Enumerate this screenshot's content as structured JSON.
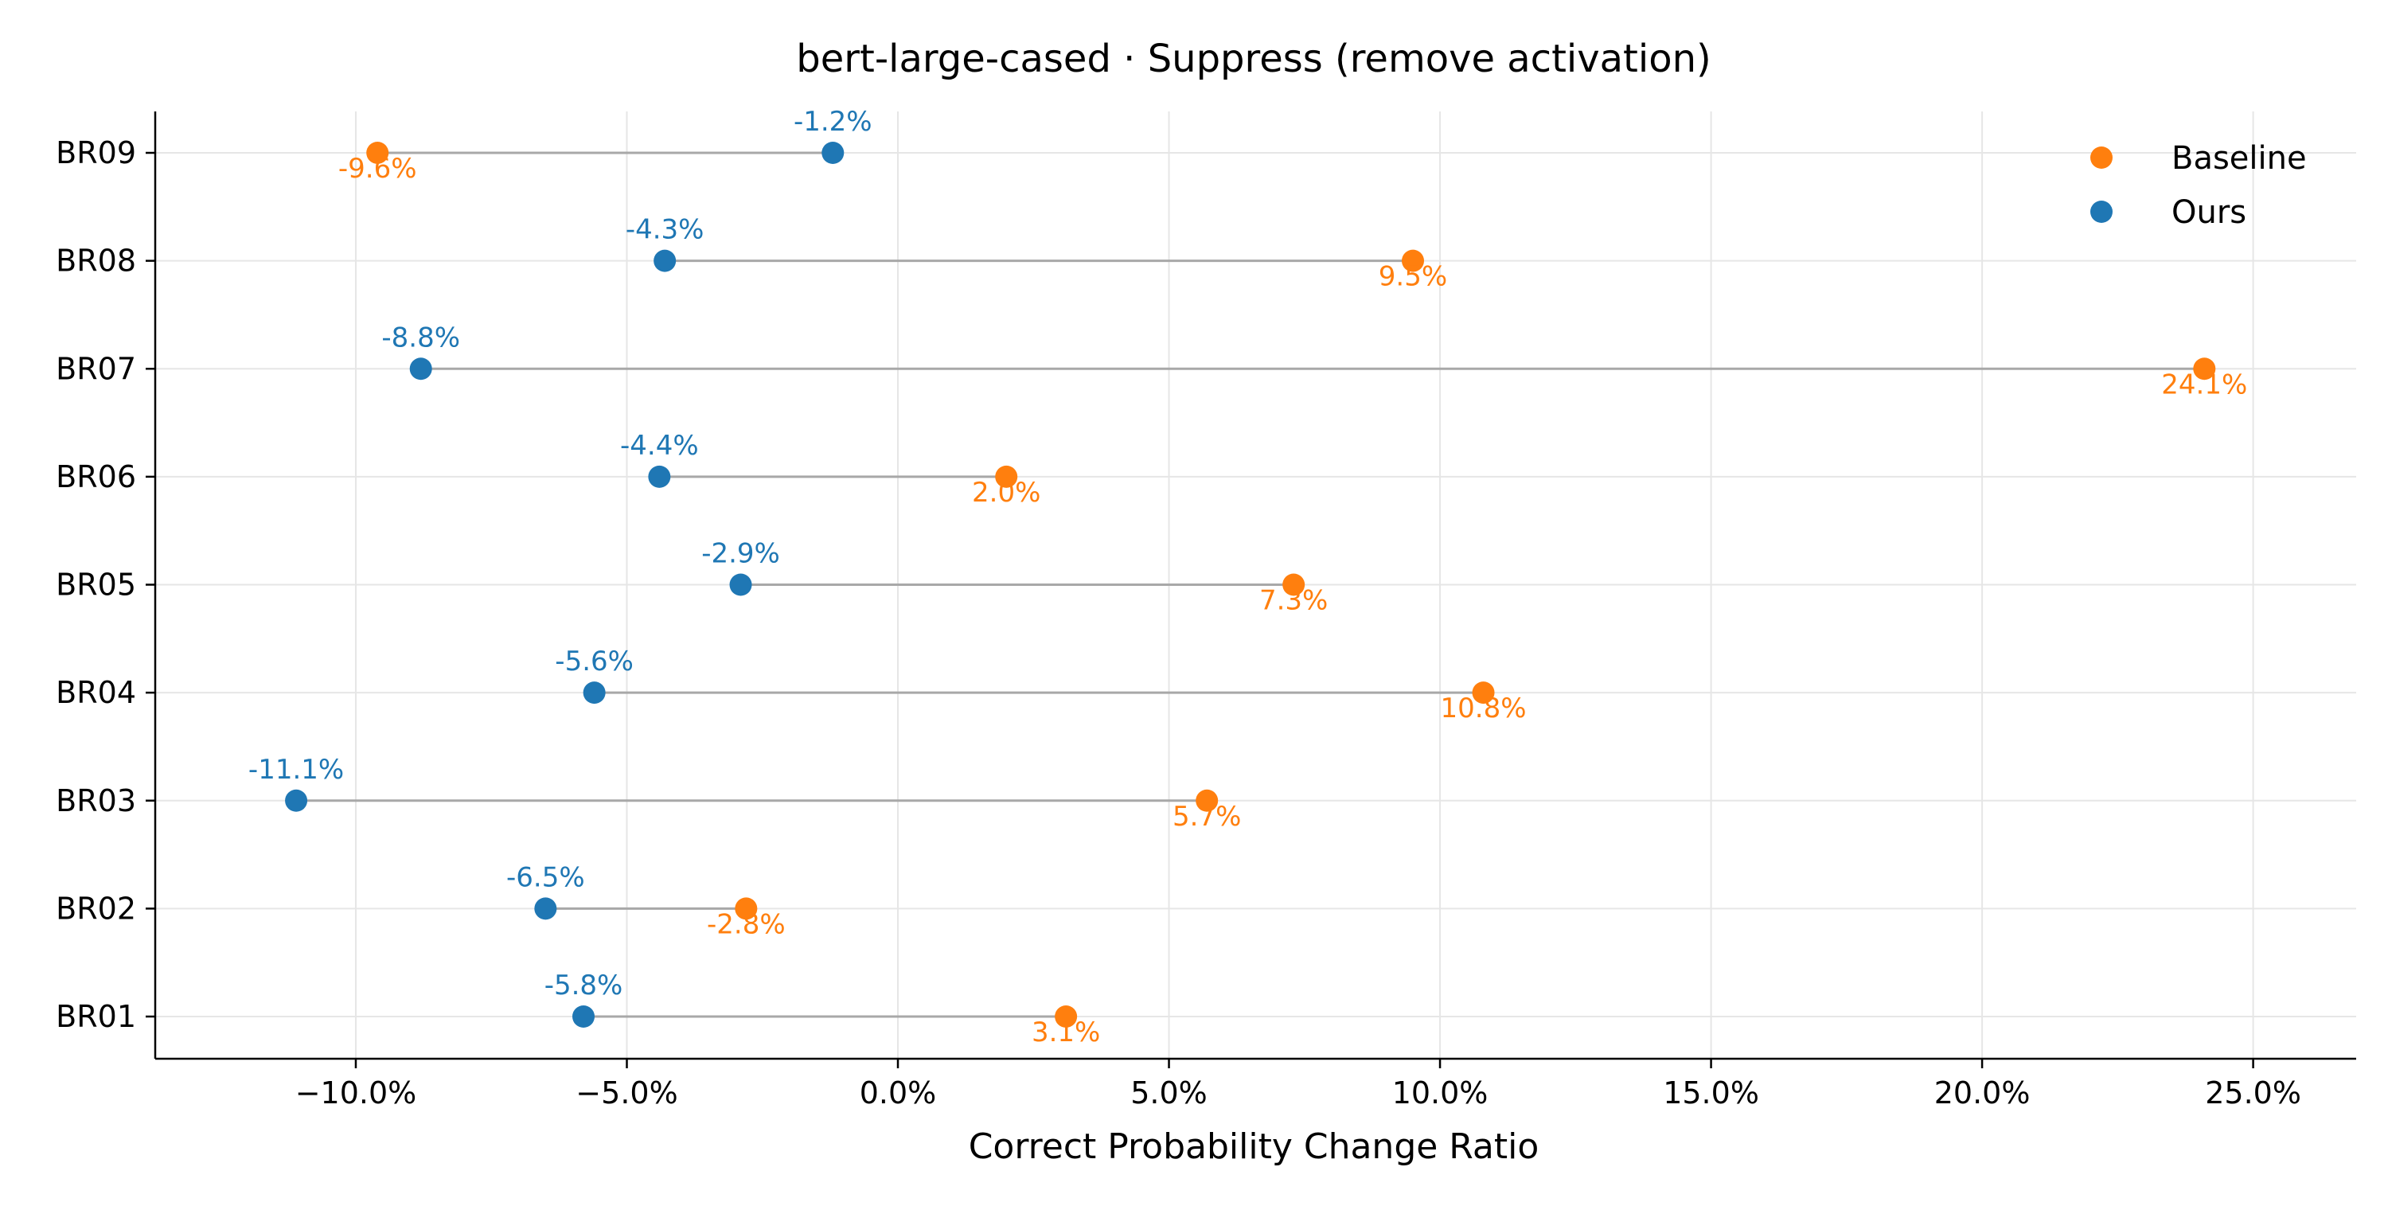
{
  "chart_data": {
    "type": "dumbbell",
    "title": "bert-large-cased · Suppress (remove activation)",
    "xlabel": "Correct Probability Change Ratio",
    "ylabel": "",
    "xlim": [
      -13.7,
      26.9
    ],
    "x_ticks": [
      -10,
      -5,
      0,
      5,
      10,
      15,
      20,
      25
    ],
    "x_tick_labels": [
      "−10.0%",
      "−5.0%",
      "0.0%",
      "5.0%",
      "10.0%",
      "15.0%",
      "20.0%",
      "25.0%"
    ],
    "categories": [
      "BR01",
      "BR02",
      "BR03",
      "BR04",
      "BR05",
      "BR06",
      "BR07",
      "BR08",
      "BR09"
    ],
    "series": [
      {
        "name": "Baseline",
        "color": "#ff7f0e",
        "values": [
          3.1,
          -2.8,
          5.7,
          10.8,
          7.3,
          2.0,
          24.1,
          9.5,
          -9.6
        ],
        "labels": [
          "3.1%",
          "-2.8%",
          "5.7%",
          "10.8%",
          "7.3%",
          "2.0%",
          "24.1%",
          "9.5%",
          "-9.6%"
        ]
      },
      {
        "name": "Ours",
        "color": "#1f77b4",
        "values": [
          -5.8,
          -6.5,
          -11.1,
          -5.6,
          -2.9,
          -4.4,
          -8.8,
          -4.3,
          -1.2
        ],
        "labels": [
          "-5.8%",
          "-6.5%",
          "-11.1%",
          "-5.6%",
          "-2.9%",
          "-4.4%",
          "-8.8%",
          "-4.3%",
          "-1.2%"
        ]
      }
    ],
    "connector_color": "#a8a8a8",
    "grid": true,
    "legend_position": "top-right"
  }
}
